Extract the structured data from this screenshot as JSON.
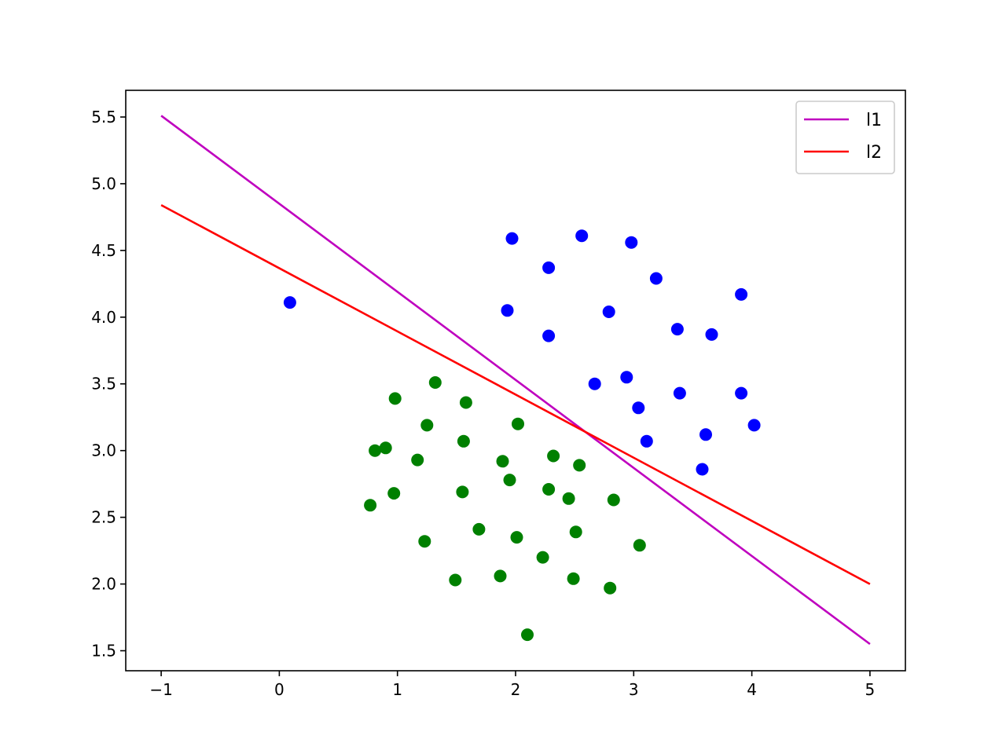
{
  "chart_data": {
    "type": "scatter",
    "title": "",
    "xlabel": "",
    "ylabel": "",
    "xlim": [
      -1.3,
      5.3
    ],
    "ylim": [
      1.35,
      5.7
    ],
    "x_ticks": [
      -1,
      0,
      1,
      2,
      3,
      4,
      5
    ],
    "x_tick_labels": [
      "−1",
      "0",
      "1",
      "2",
      "3",
      "4",
      "5"
    ],
    "y_ticks": [
      1.5,
      2.0,
      2.5,
      3.0,
      3.5,
      4.0,
      4.5,
      5.0,
      5.5
    ],
    "y_tick_labels": [
      "1.5",
      "2.0",
      "2.5",
      "3.0",
      "3.5",
      "4.0",
      "4.5",
      "5.0",
      "5.5"
    ],
    "grid": false,
    "legend_position": "top-right",
    "scatter_series": [
      {
        "color": "#0000ff",
        "points": [
          [
            1.97,
            4.59
          ],
          [
            2.56,
            4.61
          ],
          [
            2.98,
            4.56
          ],
          [
            2.28,
            4.37
          ],
          [
            3.19,
            4.29
          ],
          [
            3.91,
            4.17
          ],
          [
            1.93,
            4.05
          ],
          [
            2.79,
            4.04
          ],
          [
            3.37,
            3.91
          ],
          [
            3.66,
            3.87
          ],
          [
            2.28,
            3.86
          ],
          [
            0.09,
            4.11
          ],
          [
            2.67,
            3.5
          ],
          [
            2.94,
            3.55
          ],
          [
            3.39,
            3.43
          ],
          [
            3.91,
            3.43
          ],
          [
            3.04,
            3.32
          ],
          [
            4.02,
            3.19
          ],
          [
            3.61,
            3.12
          ],
          [
            3.11,
            3.07
          ],
          [
            3.58,
            2.86
          ]
        ]
      },
      {
        "color": "#008000",
        "points": [
          [
            1.32,
            3.51
          ],
          [
            0.98,
            3.39
          ],
          [
            1.58,
            3.36
          ],
          [
            1.25,
            3.19
          ],
          [
            2.02,
            3.2
          ],
          [
            1.56,
            3.07
          ],
          [
            0.9,
            3.02
          ],
          [
            0.81,
            3.0
          ],
          [
            1.17,
            2.93
          ],
          [
            1.89,
            2.92
          ],
          [
            2.32,
            2.96
          ],
          [
            2.54,
            2.89
          ],
          [
            1.95,
            2.78
          ],
          [
            2.28,
            2.71
          ],
          [
            1.55,
            2.69
          ],
          [
            0.97,
            2.68
          ],
          [
            2.45,
            2.64
          ],
          [
            2.83,
            2.63
          ],
          [
            0.77,
            2.59
          ],
          [
            1.69,
            2.41
          ],
          [
            2.51,
            2.39
          ],
          [
            2.01,
            2.35
          ],
          [
            1.23,
            2.32
          ],
          [
            3.05,
            2.29
          ],
          [
            2.23,
            2.2
          ],
          [
            1.49,
            2.03
          ],
          [
            1.87,
            2.06
          ],
          [
            2.49,
            2.04
          ],
          [
            2.8,
            1.97
          ],
          [
            2.1,
            1.62
          ]
        ]
      }
    ],
    "line_series": [
      {
        "name": "l1",
        "color": "#bf00bf",
        "x": [
          -1,
          5
        ],
        "y": [
          5.51,
          1.55
        ]
      },
      {
        "name": "l2",
        "color": "#ff0000",
        "x": [
          -1,
          5
        ],
        "y": [
          4.84,
          2.0
        ]
      }
    ]
  }
}
